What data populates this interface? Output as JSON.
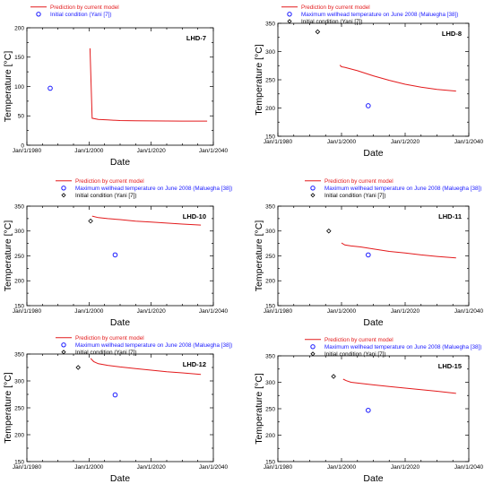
{
  "colors": {
    "prediction": "#e31a1c",
    "maximum": "#1a1aff",
    "initial": "#000000"
  },
  "chart_data": [
    {
      "type": "line",
      "title": "LHD-7",
      "xlabel": "Date",
      "ylabel": "Temperature [°C]",
      "xlim": [
        1980,
        2040
      ],
      "ylim": [
        0,
        200
      ],
      "yticks": [
        0,
        50,
        100,
        150,
        200
      ],
      "xticks": [
        1980,
        2000,
        2020,
        2040
      ],
      "xtick_labels": [
        "Jan/1/1980",
        "Jan/1/2000",
        "Jan/1/2020",
        "Jan/1/2040"
      ],
      "legend": [
        "Prediction by current model",
        "Initial condition (Yani [7])"
      ],
      "series": [
        {
          "name": "Prediction by current model",
          "style": "line",
          "color": "prediction",
          "points": [
            [
              2000.3,
              165
            ],
            [
              2001.0,
              46
            ],
            [
              2003,
              44
            ],
            [
              2006,
              43
            ],
            [
              2010,
              42
            ],
            [
              2015,
              41.5
            ],
            [
              2020,
              41.3
            ],
            [
              2030,
              41
            ],
            [
              2038,
              41
            ]
          ]
        },
        {
          "name": "Initial condition (Yani [7])",
          "style": "circle",
          "color": "maximum",
          "points": [
            [
              1987.5,
              97
            ]
          ]
        }
      ]
    },
    {
      "type": "line",
      "title": "LHD-8",
      "xlabel": "Date",
      "ylabel": "Temperature [°C]",
      "xlim": [
        1980,
        2040
      ],
      "ylim": [
        150,
        350
      ],
      "yticks": [
        150,
        200,
        250,
        300,
        350
      ],
      "xticks": [
        1980,
        2000,
        2020,
        2040
      ],
      "xtick_labels": [
        "Jan/1/1980",
        "Jan/1/2000",
        "Jan/1/2020",
        "Jan/1/2040"
      ],
      "legend": [
        "Prediction by current model",
        "Maximum wellhead temperature on June 2008 (Malueghа [38])",
        "Initial condition (Yani [7])"
      ],
      "series": [
        {
          "name": "Prediction by current model",
          "style": "line",
          "color": "prediction",
          "points": [
            [
              1999.5,
              276
            ],
            [
              2000,
              273
            ],
            [
              2001,
              272
            ],
            [
              2005,
              266
            ],
            [
              2010,
              257
            ],
            [
              2015,
              249
            ],
            [
              2020,
              242
            ],
            [
              2025,
              237
            ],
            [
              2030,
              233
            ],
            [
              2036,
              230
            ]
          ]
        },
        {
          "name": "Maximum wellhead temperature on June 2008 (Malueghа [38])",
          "style": "circle",
          "color": "maximum",
          "points": [
            [
              2008.4,
              204
            ]
          ]
        },
        {
          "name": "Initial condition (Yani [7])",
          "style": "diamond",
          "color": "initial",
          "points": [
            [
              1992.5,
              335
            ]
          ]
        }
      ]
    },
    {
      "type": "line",
      "title": "LHD-10",
      "xlabel": "Date",
      "ylabel": "Temperature [°C]",
      "xlim": [
        1980,
        2040
      ],
      "ylim": [
        150,
        350
      ],
      "yticks": [
        150,
        200,
        250,
        300,
        350
      ],
      "xticks": [
        1980,
        2000,
        2020,
        2040
      ],
      "xtick_labels": [
        "Jan/1/1980",
        "Jan/1/2000",
        "Jan/1/2020",
        "Jan/1/2040"
      ],
      "legend": [
        "Prediction by current model",
        "Maximum wellhead temperature on June 2008 (Malueghа [38])",
        "Initial condition (Yani [7])"
      ],
      "series": [
        {
          "name": "Prediction by current model",
          "style": "line",
          "color": "prediction",
          "points": [
            [
              2001,
              330
            ],
            [
              2003,
              327
            ],
            [
              2006,
              325
            ],
            [
              2010,
              323
            ],
            [
              2015,
              320
            ],
            [
              2020,
              318
            ],
            [
              2025,
              316
            ],
            [
              2030,
              314
            ],
            [
              2036,
              312
            ]
          ]
        },
        {
          "name": "Maximum wellhead temperature on June 2008 (Malueghа [38])",
          "style": "circle",
          "color": "maximum",
          "points": [
            [
              2008.4,
              252
            ]
          ]
        },
        {
          "name": "Initial condition (Yani [7])",
          "style": "diamond",
          "color": "initial",
          "points": [
            [
              2000.5,
              320
            ]
          ]
        }
      ]
    },
    {
      "type": "line",
      "title": "LHD-11",
      "xlabel": "Date",
      "ylabel": "Temperature [°C]",
      "xlim": [
        1980,
        2040
      ],
      "ylim": [
        150,
        350
      ],
      "yticks": [
        150,
        200,
        250,
        300,
        350
      ],
      "xticks": [
        1980,
        2000,
        2020,
        2040
      ],
      "xtick_labels": [
        "Jan/1/1980",
        "Jan/1/2000",
        "Jan/1/2020",
        "Jan/1/2040"
      ],
      "legend": [
        "Prediction by current model",
        "Maximum wellhead temperature on June 2008 (Malueghа [38])",
        "Initial condition (Yani [7])"
      ],
      "series": [
        {
          "name": "Prediction by current model",
          "style": "line",
          "color": "prediction",
          "points": [
            [
              2000,
              276
            ],
            [
              2001,
              272
            ],
            [
              2003,
              270
            ],
            [
              2006,
              268
            ],
            [
              2010,
              264
            ],
            [
              2015,
              259
            ],
            [
              2020,
              256
            ],
            [
              2025,
              252
            ],
            [
              2030,
              249
            ],
            [
              2036,
              246
            ]
          ]
        },
        {
          "name": "Maximum wellhead temperature on June 2008 (Malueghа [38])",
          "style": "circle",
          "color": "maximum",
          "points": [
            [
              2008.4,
              252
            ]
          ]
        },
        {
          "name": "Initial condition (Yani [7])",
          "style": "diamond",
          "color": "initial",
          "points": [
            [
              1996,
              300
            ]
          ]
        }
      ]
    },
    {
      "type": "line",
      "title": "LHD-12",
      "xlabel": "Date",
      "ylabel": "Temperature [°C]",
      "xlim": [
        1980,
        2040
      ],
      "ylim": [
        150,
        350
      ],
      "yticks": [
        150,
        200,
        250,
        300,
        350
      ],
      "xticks": [
        1980,
        2000,
        2020,
        2040
      ],
      "xtick_labels": [
        "Jan/1/1980",
        "Jan/1/2000",
        "Jan/1/2020",
        "Jan/1/2040"
      ],
      "legend": [
        "Prediction by current model",
        "Maximum wellhead temperature on June 2008 (Malueghа [38])",
        "Initial condition (Yani [7])"
      ],
      "series": [
        {
          "name": "Prediction by current model",
          "style": "line",
          "color": "prediction",
          "points": [
            [
              2000.5,
              342
            ],
            [
              2001.5,
              336
            ],
            [
              2003,
              332
            ],
            [
              2006,
              329
            ],
            [
              2010,
              326
            ],
            [
              2015,
              323
            ],
            [
              2020,
              320
            ],
            [
              2025,
              317
            ],
            [
              2030,
              315
            ],
            [
              2036,
              312
            ]
          ]
        },
        {
          "name": "Maximum wellhead temperature on June 2008 (Malueghа [38])",
          "style": "circle",
          "color": "maximum",
          "points": [
            [
              2008.4,
              274
            ]
          ]
        },
        {
          "name": "Initial condition (Yani [7])",
          "style": "diamond",
          "color": "initial",
          "points": [
            [
              1996.5,
              325
            ]
          ]
        }
      ]
    },
    {
      "type": "line",
      "title": "LHD-15",
      "xlabel": "Date",
      "ylabel": "Temperature [°C]",
      "xlim": [
        1980,
        2040
      ],
      "ylim": [
        150,
        350
      ],
      "yticks": [
        150,
        200,
        250,
        300,
        350
      ],
      "xticks": [
        1980,
        2000,
        2020,
        2040
      ],
      "xtick_labels": [
        "Jan/1/1980",
        "Jan/1/2000",
        "Jan/1/2020",
        "Jan/1/2040"
      ],
      "legend": [
        "Prediction by current model",
        "Maximum wellhead temperature on June 2008 (Malueghа [38])",
        "Initial condition (Yani [7])"
      ],
      "series": [
        {
          "name": "Prediction by current model",
          "style": "line",
          "color": "prediction",
          "points": [
            [
              2000.5,
              306
            ],
            [
              2001.5,
              303
            ],
            [
              2003,
              300
            ],
            [
              2006,
              298
            ],
            [
              2010,
              295
            ],
            [
              2015,
              292
            ],
            [
              2020,
              289
            ],
            [
              2025,
              286
            ],
            [
              2030,
              283
            ],
            [
              2036,
              279
            ]
          ]
        },
        {
          "name": "Maximum wellhead temperature on June 2008 (Malueghа [38])",
          "style": "circle",
          "color": "maximum",
          "points": [
            [
              2008.4,
              247
            ]
          ]
        },
        {
          "name": "Initial condition (Yani [7])",
          "style": "diamond",
          "color": "initial",
          "points": [
            [
              1997.5,
              311
            ]
          ]
        }
      ]
    }
  ]
}
